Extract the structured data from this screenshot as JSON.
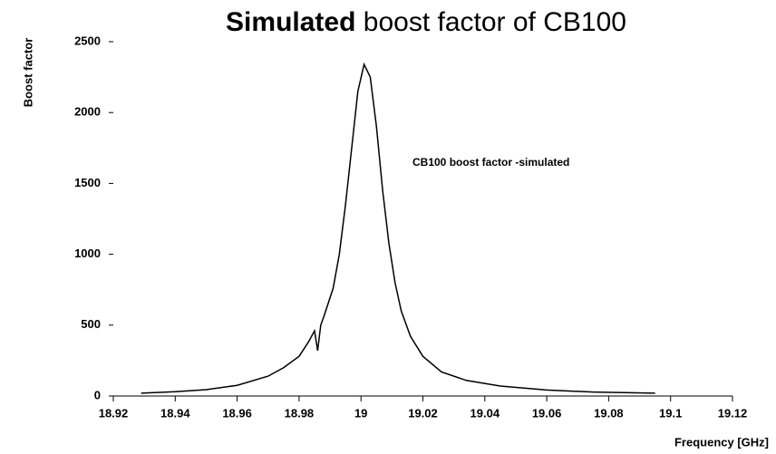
{
  "chart_data": {
    "type": "line",
    "title": [
      "Simulated",
      "boost factor of CB100"
    ],
    "x_label": "Frequency [GHz]",
    "y_label": "Boost factor",
    "annotation": "CB100 boost factor -simulated",
    "x": [
      18.929,
      18.94,
      18.95,
      18.96,
      18.97,
      18.975,
      18.98,
      18.983,
      18.985,
      18.986,
      18.987,
      18.988,
      18.991,
      18.993,
      18.995,
      18.997,
      18.999,
      19.001,
      19.003,
      19.005,
      19.007,
      19.009,
      19.011,
      19.013,
      19.016,
      19.02,
      19.026,
      19.034,
      19.045,
      19.06,
      19.075,
      19.095
    ],
    "series": [
      {
        "name": "CB100 boost factor -simulated",
        "color": "#000000",
        "values": [
          20,
          30,
          45,
          75,
          140,
          200,
          280,
          380,
          460,
          320,
          500,
          560,
          760,
          1000,
          1350,
          1750,
          2150,
          2340,
          2250,
          1900,
          1450,
          1080,
          800,
          600,
          420,
          280,
          170,
          110,
          70,
          42,
          28,
          20
        ]
      }
    ],
    "xlim": [
      18.92,
      19.12
    ],
    "xticks": [
      18.92,
      18.94,
      18.96,
      18.98,
      19,
      19.02,
      19.04,
      19.06,
      19.08,
      19.1,
      19.12
    ],
    "ylim": [
      0,
      2500
    ],
    "yticks": [
      0,
      500,
      1000,
      1500,
      2000,
      2500
    ],
    "grid": false
  }
}
